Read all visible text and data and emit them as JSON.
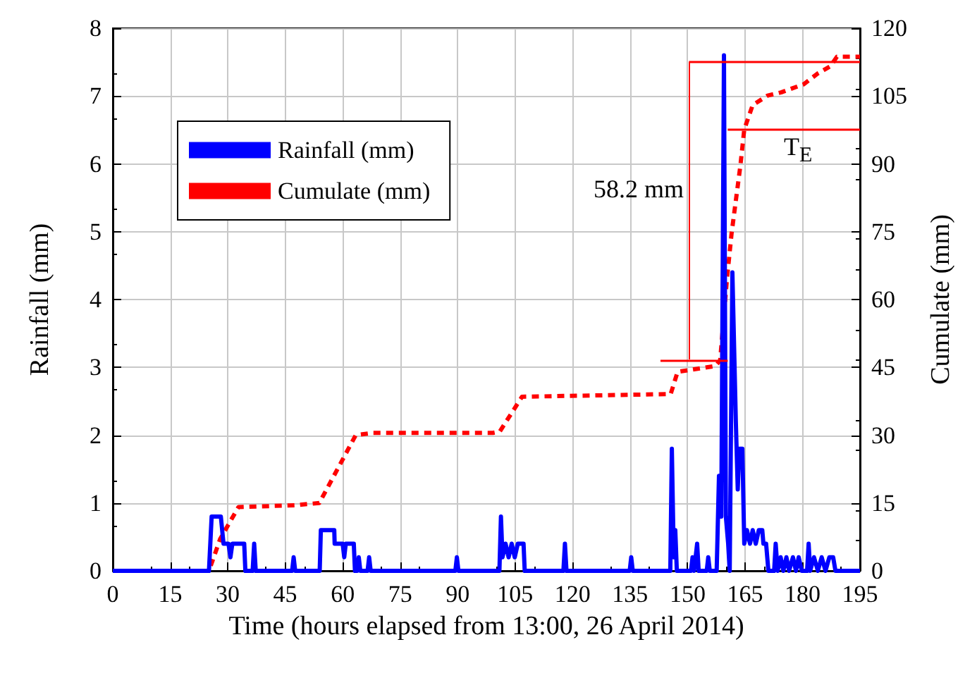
{
  "chart_data": {
    "type": "line",
    "xlabel": "Time (hours elapsed from 13:00, 26 April 2014)",
    "ylabel": "Rainfall (mm)",
    "y2label": "Cumulate (mm)",
    "xlim": [
      0,
      195
    ],
    "xticks": [
      0,
      15,
      30,
      45,
      60,
      75,
      90,
      105,
      120,
      135,
      150,
      165,
      180,
      195
    ],
    "ylim": [
      0,
      8
    ],
    "yticks": [
      0,
      1,
      2,
      3,
      4,
      5,
      6,
      7,
      8
    ],
    "y2lim": [
      0,
      120
    ],
    "y2ticks": [
      0,
      15,
      30,
      45,
      60,
      75,
      90,
      105,
      120
    ],
    "grid": true,
    "legend": "top left",
    "marker": "none",
    "series": [
      {
        "name": "Rainfall (mm)",
        "color": "#0000ff",
        "line_style": "solid",
        "x": [
          0,
          25.1,
          25.8,
          28.2,
          28.9,
          30.2,
          30.7,
          31.2,
          34.3,
          34.6,
          36.5,
          36.9,
          37.3,
          46.8,
          47.2,
          47.6,
          54,
          54.3,
          57.8,
          57.9,
          60,
          60.4,
          60.8,
          62.9,
          63.2,
          63.8,
          64.2,
          64.6,
          66.5,
          66.9,
          67.3,
          89.4,
          89.8,
          90.2,
          100.9,
          101.3,
          101.7,
          102.5,
          103.3,
          104.1,
          104.9,
          105.7,
          107.2,
          107.5,
          117.6,
          118,
          118.4,
          134.9,
          135.3,
          135.7,
          145.5,
          145.9,
          146.4,
          146.8,
          147.2,
          150.9,
          151.3,
          151.7,
          152.5,
          152.9,
          155,
          155.4,
          155.8,
          157.6,
          158.2,
          158.8,
          159.5,
          160,
          160.6,
          161,
          161.7,
          162.6,
          163.1,
          163.5,
          164.3,
          164.8,
          165.5,
          166.3,
          167,
          167.8,
          168.6,
          169.5,
          169.8,
          170.5,
          171.1,
          172.6,
          173,
          173.5,
          174.3,
          175,
          175.8,
          176.5,
          177.5,
          178.3,
          179,
          179.8,
          181.2,
          181.6,
          182,
          183,
          184,
          185,
          186,
          187,
          188,
          188.6,
          195
        ],
        "values": [
          0,
          0,
          0.8,
          0.8,
          0.4,
          0.4,
          0.2,
          0.4,
          0.4,
          0,
          0,
          0.4,
          0,
          0,
          0.2,
          0,
          0,
          0.6,
          0.6,
          0.4,
          0.4,
          0.2,
          0.4,
          0.4,
          0,
          0,
          0.2,
          0,
          0,
          0.2,
          0,
          0,
          0.2,
          0,
          0,
          0.8,
          0.2,
          0.4,
          0.2,
          0.4,
          0.2,
          0.4,
          0.4,
          0,
          0,
          0.4,
          0,
          0,
          0.2,
          0,
          0,
          1.8,
          0.2,
          0.6,
          0,
          0,
          0.2,
          0,
          0.4,
          0,
          0,
          0.2,
          0,
          0,
          1.4,
          0.8,
          7.6,
          0.8,
          0.4,
          0,
          4.4,
          2.2,
          1.2,
          1.8,
          1.8,
          0.4,
          0.6,
          0.4,
          0.6,
          0.4,
          0.6,
          0.6,
          0.4,
          0.4,
          0,
          0,
          0.4,
          0,
          0.2,
          0,
          0.2,
          0,
          0.2,
          0,
          0.2,
          0,
          0,
          0.4,
          0,
          0.2,
          0,
          0.2,
          0,
          0.2,
          0.2,
          0,
          0
        ]
      },
      {
        "name": "Cumulate (mm)",
        "color": "#ff0000",
        "line_style": "dashed",
        "axis": "y2",
        "x": [
          0,
          25.1,
          28,
          32.8,
          47.5,
          53.9,
          63.4,
          68,
          99.2,
          101,
          106.8,
          145.6,
          147.4,
          157.2,
          158.5,
          160.3,
          161.5,
          163.8,
          164.8,
          167,
          170.9,
          174.4,
          180.3,
          184,
          187.3,
          189,
          195
        ],
        "values": [
          0,
          0,
          7,
          14.1,
          14.5,
          15,
          30,
          30.5,
          30.5,
          30.8,
          38.5,
          39.1,
          44,
          45.3,
          46.5,
          64.7,
          74.7,
          89.7,
          97.6,
          103,
          105.1,
          105.8,
          107.6,
          110,
          111.6,
          113.7,
          113.7
        ]
      }
    ],
    "ref_lines": [
      {
        "axis": "y2",
        "value": 46.6,
        "color": "#ff0000"
      },
      {
        "axis": "y2",
        "value": 112.5,
        "color": "#ff0000"
      },
      {
        "axis": "y2",
        "value": 97.5,
        "color": "#ff0000"
      }
    ],
    "annotations": [
      "58.2 mm",
      "T$_{E}$"
    ]
  }
}
